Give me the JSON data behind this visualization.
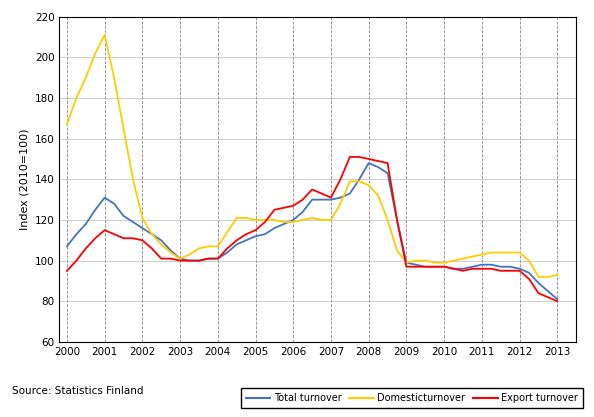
{
  "years": [
    2000.0,
    2000.25,
    2000.5,
    2000.75,
    2001.0,
    2001.25,
    2001.5,
    2001.75,
    2002.0,
    2002.25,
    2002.5,
    2002.75,
    2003.0,
    2003.25,
    2003.5,
    2003.75,
    2004.0,
    2004.25,
    2004.5,
    2004.75,
    2005.0,
    2005.25,
    2005.5,
    2005.75,
    2006.0,
    2006.25,
    2006.5,
    2006.75,
    2007.0,
    2007.25,
    2007.5,
    2007.75,
    2008.0,
    2008.25,
    2008.5,
    2008.75,
    2009.0,
    2009.25,
    2009.5,
    2009.75,
    2010.0,
    2010.25,
    2010.5,
    2010.75,
    2011.0,
    2011.25,
    2011.5,
    2011.75,
    2012.0,
    2012.25,
    2012.5,
    2012.75,
    2013.0
  ],
  "total_turnover": [
    107,
    113,
    118,
    125,
    131,
    128,
    122,
    119,
    116,
    113,
    110,
    105,
    101,
    100,
    100,
    101,
    101,
    104,
    108,
    110,
    112,
    113,
    116,
    118,
    120,
    124,
    130,
    130,
    130,
    131,
    133,
    140,
    148,
    146,
    143,
    120,
    99,
    98,
    97,
    97,
    97,
    96,
    96,
    97,
    98,
    98,
    97,
    97,
    96,
    94,
    89,
    85,
    81
  ],
  "domestic_turnover": [
    167,
    180,
    190,
    202,
    211,
    190,
    165,
    140,
    121,
    113,
    108,
    104,
    101,
    103,
    106,
    107,
    107,
    114,
    121,
    121,
    120,
    120,
    120,
    119,
    119,
    120,
    121,
    120,
    120,
    128,
    139,
    139,
    137,
    132,
    120,
    105,
    99,
    100,
    100,
    99,
    99,
    100,
    101,
    102,
    103,
    104,
    104,
    104,
    104,
    100,
    92,
    92,
    93
  ],
  "export_turnover": [
    95,
    100,
    106,
    111,
    115,
    113,
    111,
    111,
    110,
    106,
    101,
    101,
    100,
    100,
    100,
    101,
    101,
    106,
    110,
    113,
    115,
    119,
    125,
    126,
    127,
    130,
    135,
    133,
    131,
    140,
    151,
    151,
    150,
    149,
    148,
    120,
    97,
    97,
    97,
    97,
    97,
    96,
    95,
    96,
    96,
    96,
    95,
    95,
    95,
    91,
    84,
    82,
    80
  ],
  "total_color": "#4472C4",
  "domestic_color": "#FFCC00",
  "export_color": "#FF0000",
  "ylabel": "Index (2010=100)",
  "ylim": [
    60,
    220
  ],
  "yticks": [
    60,
    80,
    100,
    120,
    140,
    160,
    180,
    200,
    220
  ],
  "xlim": [
    1999.8,
    2013.5
  ],
  "xticks": [
    2000,
    2001,
    2002,
    2003,
    2004,
    2005,
    2006,
    2007,
    2008,
    2009,
    2010,
    2011,
    2012,
    2013
  ],
  "source_text": "Source: Statistics Finland",
  "legend_labels": [
    "Total turnover",
    "Domesticturnover",
    "Export turnover"
  ],
  "background_color": "#ffffff"
}
